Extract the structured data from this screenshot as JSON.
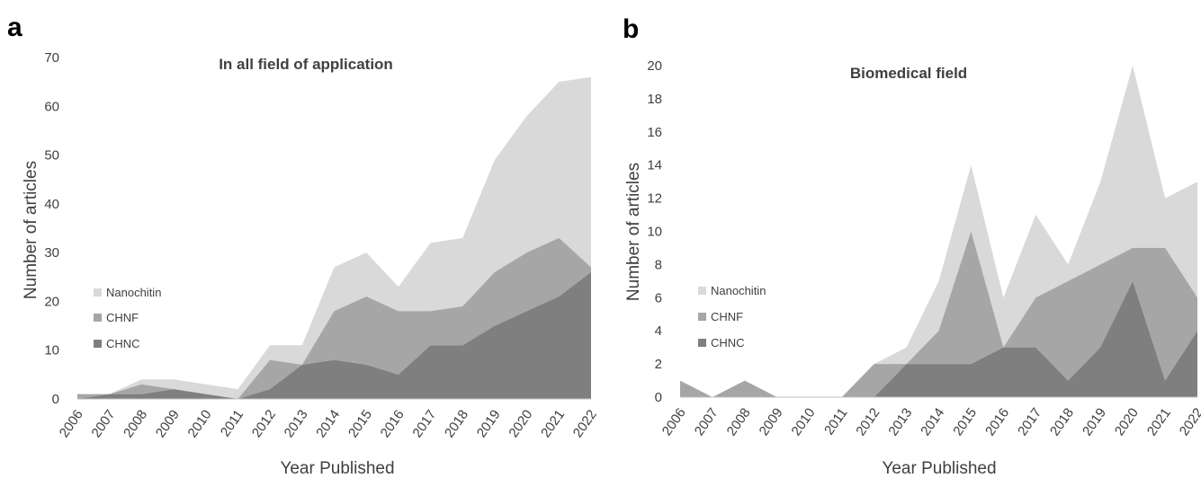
{
  "chart_data": [
    {
      "type": "area",
      "stacked": true,
      "panel_label": "a",
      "title": "In all field of application",
      "xlabel": "Year Published",
      "ylabel": "Number of articles",
      "ylim": [
        0,
        70
      ],
      "yticks": [
        "0",
        "10",
        "20",
        "30",
        "40",
        "50",
        "60",
        "70"
      ],
      "grid": false,
      "legend_position": "left",
      "categories": [
        "2006",
        "2007",
        "2008",
        "2009",
        "2010",
        "2011",
        "2012",
        "2013",
        "2014",
        "2015",
        "2016",
        "2017",
        "2018",
        "2019",
        "2020",
        "2021",
        "2022"
      ],
      "series": [
        {
          "name": "CHNC",
          "color": "#7f7f7f",
          "values": [
            0,
            1,
            1,
            2,
            1,
            0,
            2,
            7,
            8,
            7,
            5,
            11,
            11,
            15,
            18,
            21,
            26
          ]
        },
        {
          "name": "CHNF",
          "color": "#a6a6a6",
          "values": [
            1,
            0,
            2,
            0,
            0,
            0,
            6,
            0,
            10,
            14,
            13,
            7,
            8,
            11,
            12,
            12,
            1
          ]
        },
        {
          "name": "Nanochitin",
          "color": "#d9d9d9",
          "values": [
            0,
            0,
            1,
            2,
            2,
            2,
            3,
            4,
            9,
            9,
            5,
            14,
            14,
            23,
            28,
            32,
            39
          ]
        }
      ]
    },
    {
      "type": "area",
      "stacked": true,
      "panel_label": "b",
      "title": "Biomedical field",
      "xlabel": "Year Published",
      "ylabel": "Number of articles",
      "ylim": [
        0,
        20
      ],
      "yticks": [
        "0",
        "2",
        "4",
        "6",
        "8",
        "10",
        "12",
        "14",
        "16",
        "18",
        "20"
      ],
      "grid": false,
      "legend_position": "left",
      "categories": [
        "2006",
        "2007",
        "2008",
        "2009",
        "2010",
        "2011",
        "2012",
        "2013",
        "2014",
        "2015",
        "2016",
        "2017",
        "2018",
        "2019",
        "2020",
        "2021",
        "2022"
      ],
      "series": [
        {
          "name": "CHNC",
          "color": "#7f7f7f",
          "values": [
            0,
            0,
            0,
            0,
            0,
            0,
            0,
            2,
            2,
            2,
            3,
            3,
            1,
            3,
            7,
            1,
            4
          ]
        },
        {
          "name": "CHNF",
          "color": "#a6a6a6",
          "values": [
            1,
            0,
            1,
            0,
            0,
            0,
            2,
            0,
            2,
            8,
            0,
            3,
            6,
            5,
            2,
            8,
            2
          ]
        },
        {
          "name": "Nanochitin",
          "color": "#d9d9d9",
          "values": [
            0,
            0,
            0,
            0,
            0,
            0,
            0,
            1,
            3,
            4,
            3,
            5,
            1,
            5,
            11,
            3,
            7
          ]
        }
      ]
    }
  ]
}
